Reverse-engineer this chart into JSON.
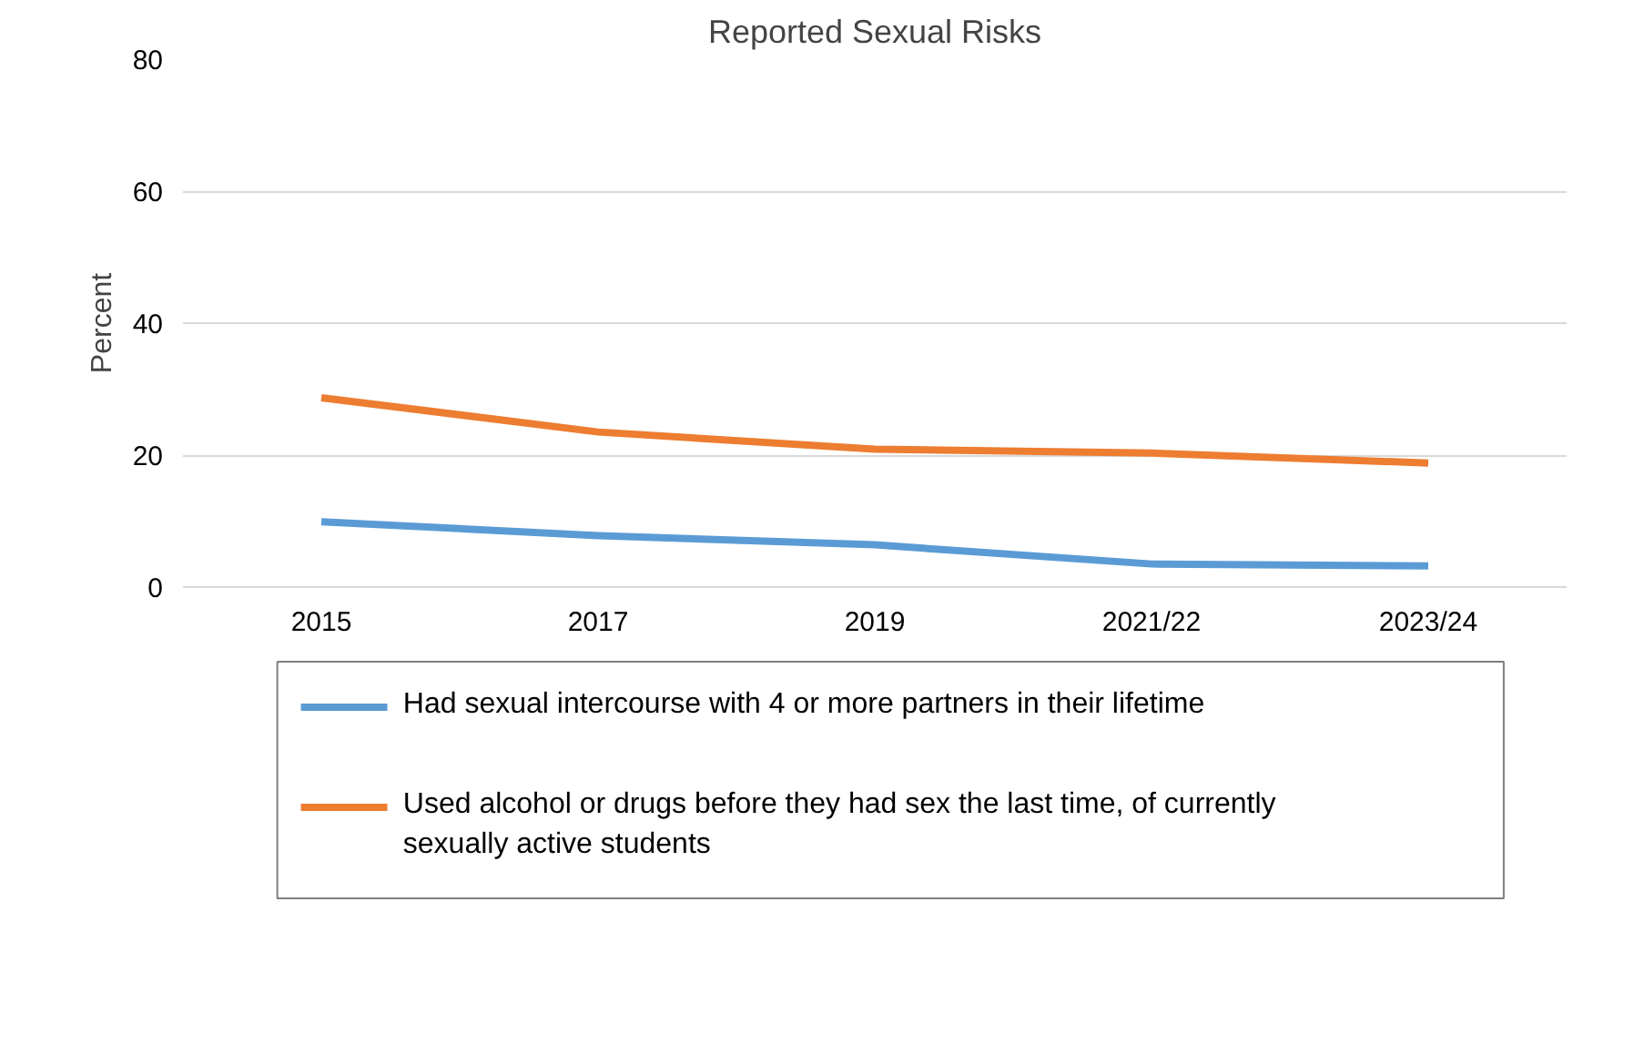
{
  "chart_data": {
    "type": "line",
    "title": "Reported Sexual Risks",
    "ylabel": "Percent",
    "categories": [
      "2015",
      "2017",
      "2019",
      "2021/22",
      "2023/24"
    ],
    "series": [
      {
        "name": "Had sexual intercourse with 4 or more partners in their lifetime",
        "color": "#5b9bd5",
        "values": [
          9.9,
          7.8,
          6.4,
          3.5,
          3.2
        ]
      },
      {
        "name": "Used alcohol or drugs before they had sex the last time, of currently sexually active students",
        "color": "#ed7d31",
        "values": [
          28.7,
          23.5,
          20.9,
          20.3,
          18.8
        ]
      }
    ],
    "ylim": [
      0,
      80
    ],
    "yticks": [
      0,
      20,
      40,
      60,
      80
    ],
    "grid": "y",
    "legend": "bottom",
    "marker": "none",
    "line_style": "solid"
  }
}
